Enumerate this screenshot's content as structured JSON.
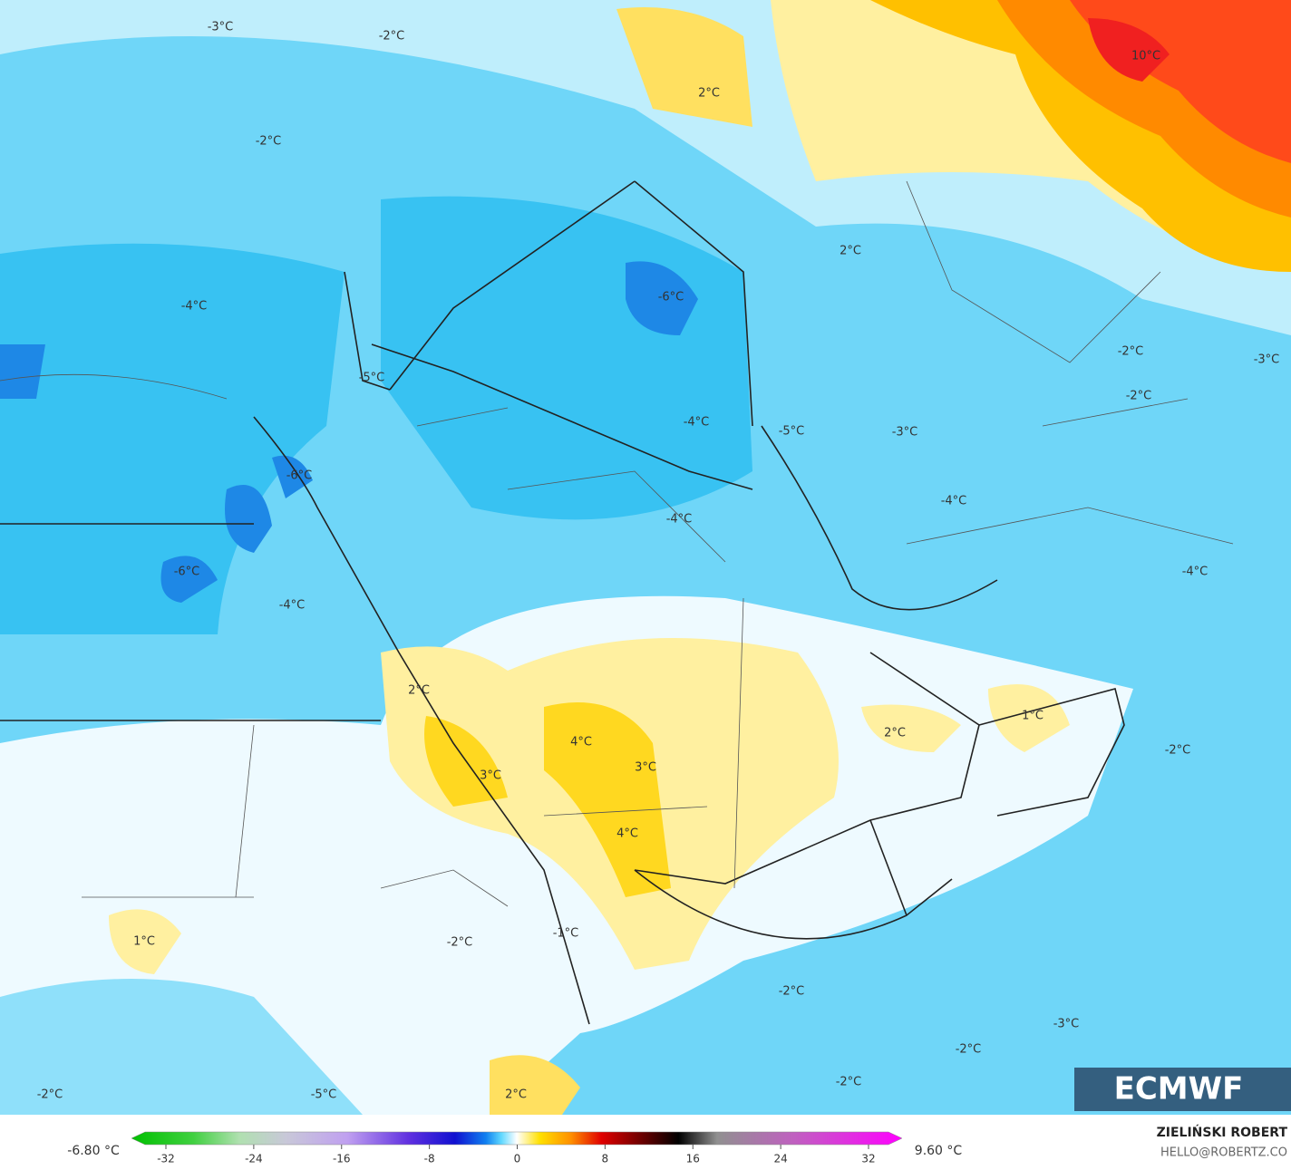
{
  "map": {
    "labels": [
      "-3°C",
      "-2°C",
      "-2°C",
      "-4°C",
      "-5°C",
      "-6°C",
      "-6°C",
      "-4°C",
      "-6°C",
      "-4°C",
      "-5°C",
      "-4°C",
      "2°C",
      "10°C",
      "2°C",
      "-2°C",
      "-3°C",
      "-2°C",
      "-3°C",
      "-4°C",
      "-4°C",
      "2°C",
      "4°C",
      "3°C",
      "3°C",
      "4°C",
      "2°C",
      "1°C",
      "-2°C",
      "1°C",
      "-1°C",
      "-2°C",
      "-2°C",
      "-3°C",
      "-2°C",
      "-2°C",
      "-2°C",
      "-5°C",
      "2°C"
    ]
  },
  "colorbar": {
    "min_label": "-6.80 °C",
    "max_label": "9.60 °C",
    "ticks": [
      -32,
      -24,
      -16,
      -8,
      0,
      8,
      16,
      24,
      32
    ]
  },
  "credits": {
    "author": "ZIELIŃSKI ROBERT",
    "email": "HELLO@ROBERTZ.CO",
    "logo": "ECMWF"
  }
}
